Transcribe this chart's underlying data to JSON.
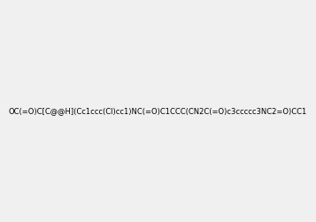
{
  "smiles": "OC(=O)C[C@@H](Cc1ccc(Cl)cc1)NC(=O)C1CCC(CN2C(=O)c3ccccc3NC2=O)CC1",
  "image_size": 300,
  "background_color": "#f0f0f0",
  "title": ""
}
